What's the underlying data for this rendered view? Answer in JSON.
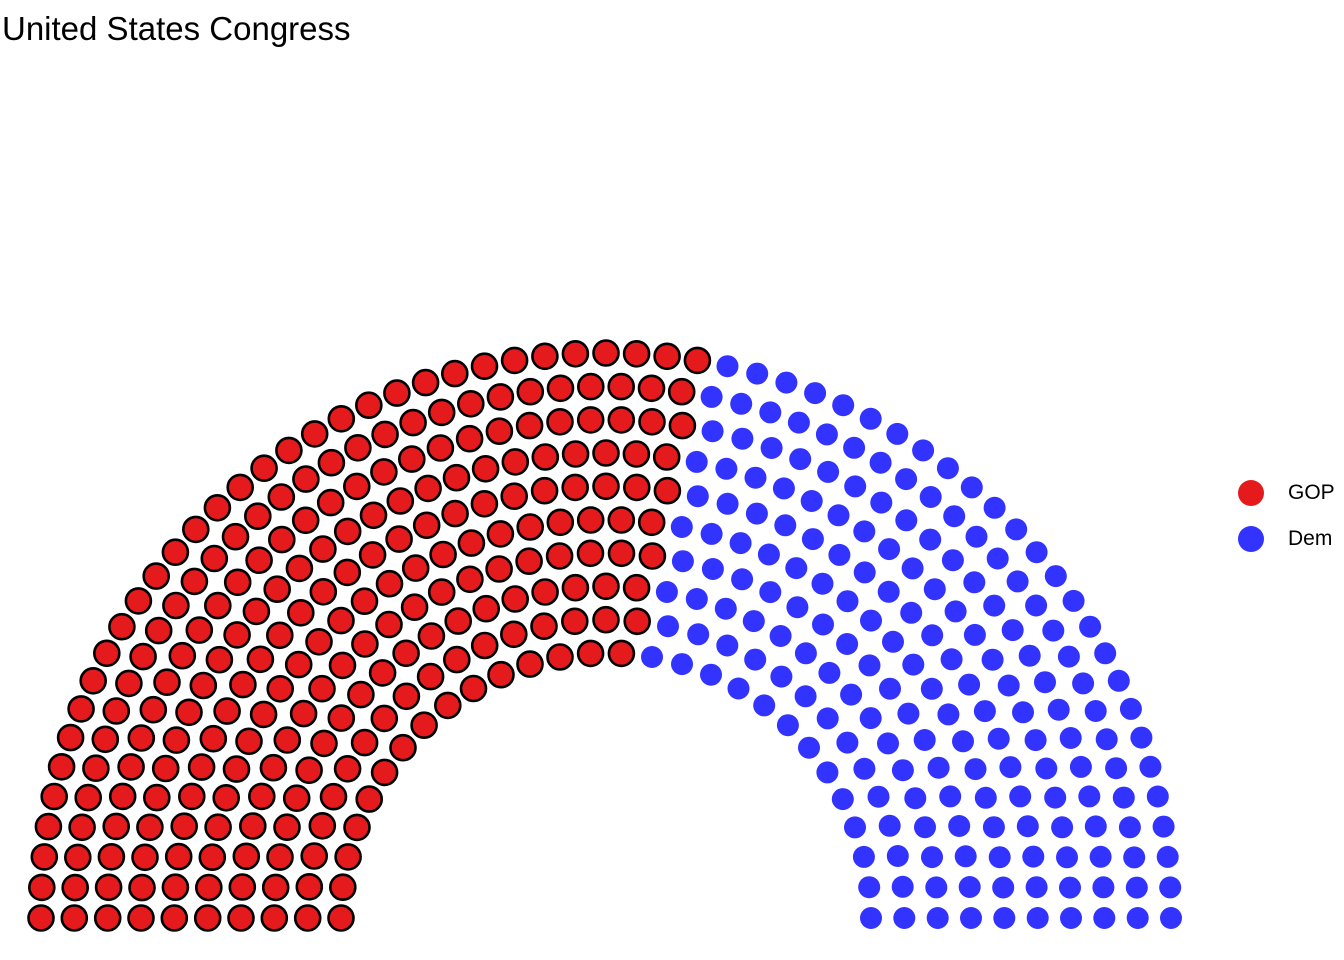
{
  "title": "United States Congress",
  "chart_data": {
    "type": "parliament",
    "title": "United States Congress",
    "total_seats": 435,
    "series": [
      {
        "name": "GOP",
        "seats": 240,
        "color": "#e41a1c",
        "outlined": true
      },
      {
        "name": "Dem",
        "seats": 195,
        "color": "#3333ff",
        "outlined": false
      }
    ],
    "legend_position": "right"
  }
}
